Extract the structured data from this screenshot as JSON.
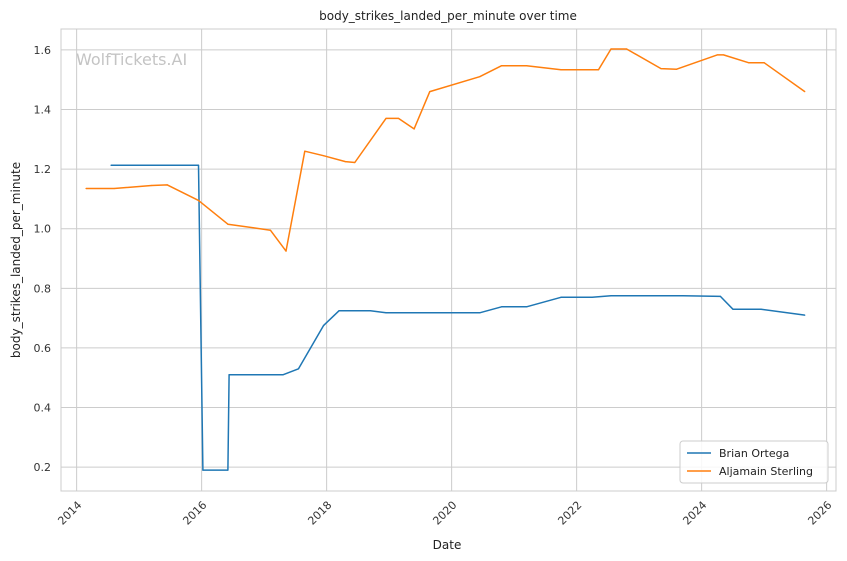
{
  "chart_data": {
    "type": "line",
    "title": "body_strikes_landed_per_minute over time",
    "xlabel": "Date",
    "ylabel": "body_strikes_landed_per_minute",
    "watermark": "WolfTickets.AI",
    "xlim": [
      2013.75,
      2026.15
    ],
    "ylim": [
      0.12,
      1.67
    ],
    "x_ticks": [
      2014,
      2016,
      2018,
      2020,
      2022,
      2024,
      2026
    ],
    "y_ticks": [
      0.2,
      0.4,
      0.6,
      0.8,
      1.0,
      1.2,
      1.4,
      1.6
    ],
    "y_tick_labels": [
      "0.2",
      "0.4",
      "0.6",
      "0.8",
      "1.0",
      "1.2",
      "1.4",
      "1.6"
    ],
    "grid": true,
    "legend_position": "bottom-right",
    "series": [
      {
        "name": "Brian Ortega",
        "color": "#1f77b4",
        "x": [
          2014.55,
          2015.95,
          2016.02,
          2016.42,
          2016.44,
          2017.3,
          2017.55,
          2017.95,
          2018.2,
          2018.7,
          2018.95,
          2020.45,
          2020.8,
          2021.2,
          2021.75,
          2022.25,
          2022.55,
          2023.7,
          2024.3,
          2024.5,
          2024.95,
          2025.65
        ],
        "y": [
          1.213,
          1.213,
          0.19,
          0.19,
          0.51,
          0.51,
          0.53,
          0.675,
          0.725,
          0.725,
          0.718,
          0.718,
          0.738,
          0.738,
          0.77,
          0.77,
          0.775,
          0.775,
          0.773,
          0.73,
          0.73,
          0.71
        ]
      },
      {
        "name": "Aljamain Sterling",
        "color": "#ff7f0e",
        "x": [
          2014.15,
          2014.6,
          2015.2,
          2015.45,
          2015.95,
          2016.42,
          2017.1,
          2017.35,
          2017.65,
          2017.95,
          2018.3,
          2018.45,
          2018.95,
          2019.15,
          2019.4,
          2019.65,
          2020.45,
          2020.8,
          2021.2,
          2021.75,
          2022.35,
          2022.55,
          2022.8,
          2023.35,
          2023.6,
          2024.25,
          2024.35,
          2024.75,
          2025.0,
          2025.65
        ],
        "y": [
          1.135,
          1.135,
          1.145,
          1.147,
          1.095,
          1.015,
          0.995,
          0.925,
          1.26,
          1.245,
          1.225,
          1.222,
          1.37,
          1.37,
          1.335,
          1.46,
          1.51,
          1.547,
          1.547,
          1.533,
          1.533,
          1.603,
          1.603,
          1.537,
          1.535,
          1.583,
          1.583,
          1.557,
          1.557,
          1.46
        ]
      }
    ]
  }
}
